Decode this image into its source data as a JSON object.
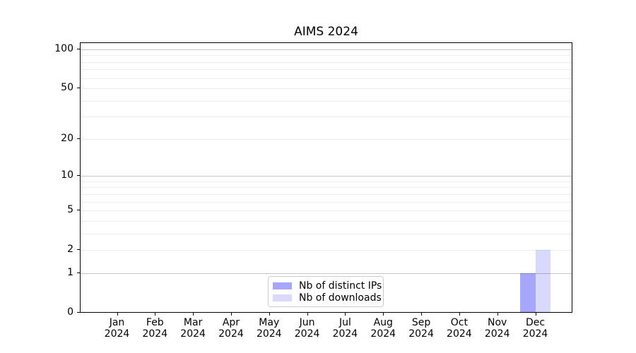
{
  "chart_data": {
    "type": "bar",
    "title": "AIMS 2024",
    "months": [
      "Jan",
      "Feb",
      "Mar",
      "Apr",
      "May",
      "Jun",
      "Jul",
      "Aug",
      "Sep",
      "Oct",
      "Nov",
      "Dec"
    ],
    "year_label": "2024",
    "series": [
      {
        "name": "Nb of distinct IPs",
        "color": "rgba(0,0,255,0.35)",
        "values": [
          0,
          0,
          0,
          0,
          0,
          0,
          0,
          0,
          0,
          0,
          0,
          1
        ]
      },
      {
        "name": "Nb of downloads",
        "color": "rgba(0,0,255,0.15)",
        "values": [
          0,
          0,
          0,
          0,
          0,
          0,
          0,
          0,
          0,
          0,
          0,
          2
        ]
      }
    ],
    "xlabel": "",
    "ylabel": "",
    "y_axis": {
      "scale": "log1p",
      "tick_values": [
        0,
        1,
        2,
        5,
        10,
        20,
        50,
        100
      ],
      "tick_labels": [
        "0",
        "1",
        "2",
        "5",
        "10",
        "20",
        "50",
        "100"
      ],
      "major_gridlines": [
        1,
        10,
        100
      ],
      "minor_gridlines": [
        2,
        3,
        4,
        5,
        6,
        7,
        8,
        9,
        20,
        30,
        40,
        50,
        60,
        70,
        80,
        90
      ],
      "ylim": [
        0,
        113
      ]
    },
    "legend_position": "bottom-center",
    "colors": {
      "bar_distinct_ips": "rgba(0,0,255,0.35)",
      "bar_downloads": "rgba(0,0,255,0.15)",
      "major_grid": "#c6c6c6",
      "minor_grid": "#ededed",
      "spine": "#000000",
      "text": "#000000",
      "legend_border": "#cccccc"
    }
  }
}
